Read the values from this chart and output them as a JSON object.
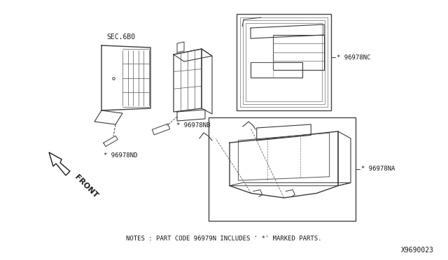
{
  "bg_color": "#ffffff",
  "fig_width": 6.4,
  "fig_height": 3.72,
  "dpi": 100,
  "diagram_id": "X9690023",
  "notes_text": "NOTES : PART CODE 96979N INCLUDES ' *' MARKED PARTS.",
  "labels": {
    "sec680": "SEC.6B0",
    "part_nb": "* 96978NB",
    "part_nd": "* 96978ND",
    "part_nc": "* 96978NC",
    "part_na": "* 96978NA",
    "front": "FRONT"
  },
  "text_color": "#1a1a1a",
  "line_color": "#3a3a3a"
}
